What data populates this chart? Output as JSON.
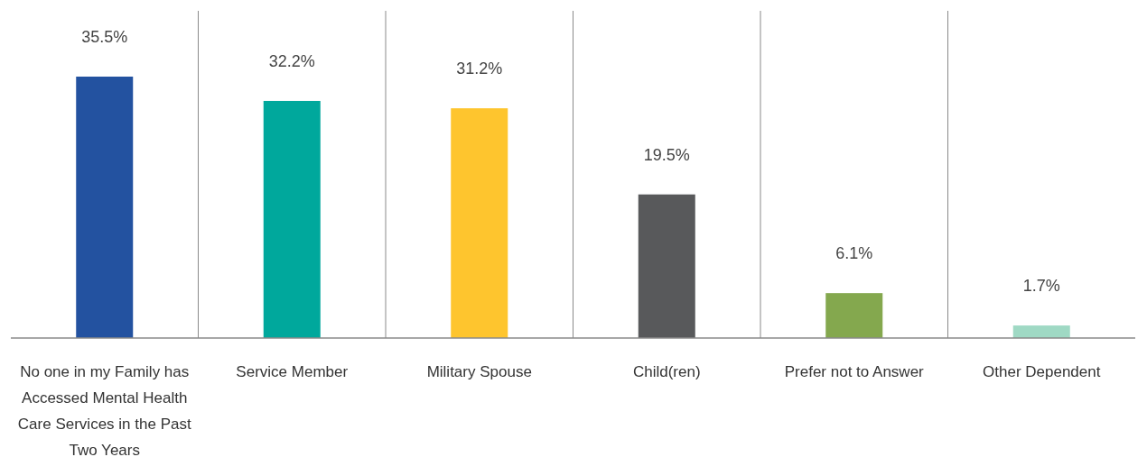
{
  "chart_data": {
    "type": "bar",
    "categories": [
      "No one in my Family has Accessed Mental Health Care Services in the Past Two Years",
      "Service Member",
      "Military Spouse",
      "Child(ren)",
      "Prefer not to Answer",
      "Other Dependent"
    ],
    "values": [
      35.5,
      32.2,
      31.2,
      19.5,
      6.1,
      1.7
    ],
    "value_labels": [
      "35.5%",
      "32.2%",
      "31.2%",
      "19.5%",
      "6.1%",
      "1.7%"
    ],
    "colors": [
      "#2352a0",
      "#00a89c",
      "#fec52e",
      "#58595b",
      "#84a84e",
      "#9fd9c4"
    ],
    "grid": "x"
  }
}
